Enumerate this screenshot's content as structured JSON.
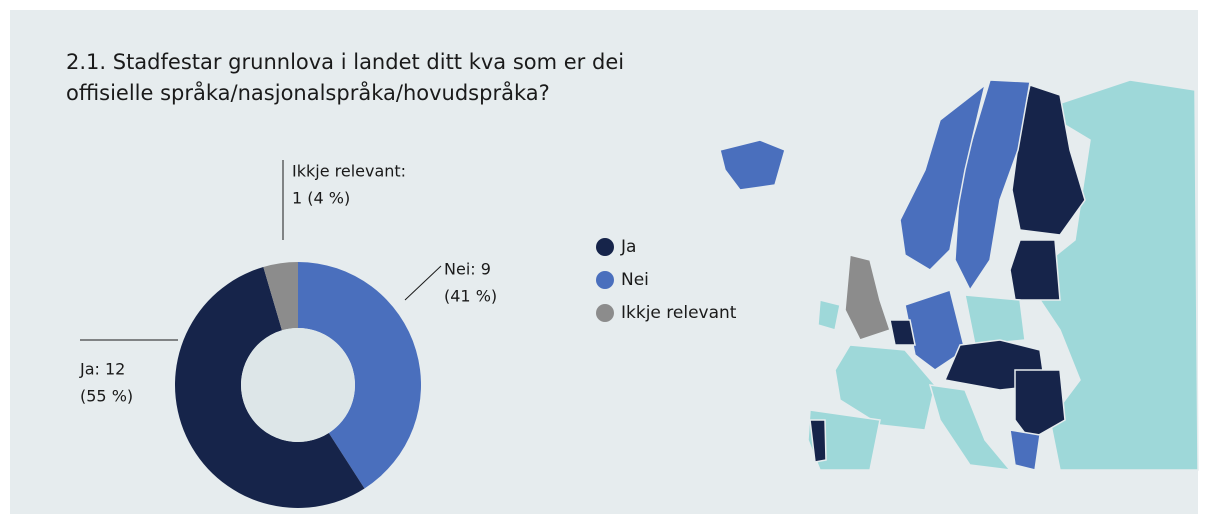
{
  "chart_data": {
    "type": "donut",
    "title": [
      "2.1. Stadfestar grunnlova i landet ditt kva som er dei",
      "offisielle språka/nasjonalspråka/hovudspråka?"
    ],
    "categories": [
      "Ja",
      "Nei",
      "Ikkje relevant"
    ],
    "values": [
      12,
      9,
      1
    ],
    "value_labels": [
      [
        "Ja: 12",
        "(55 %)"
      ],
      [
        "Nei: 9",
        "(41 %)"
      ],
      [
        "Ikkje relevant:",
        "1 (4 %)"
      ]
    ],
    "colors": [
      "#16244a",
      "#4a6fbd",
      "#8c8c8c"
    ]
  }
}
